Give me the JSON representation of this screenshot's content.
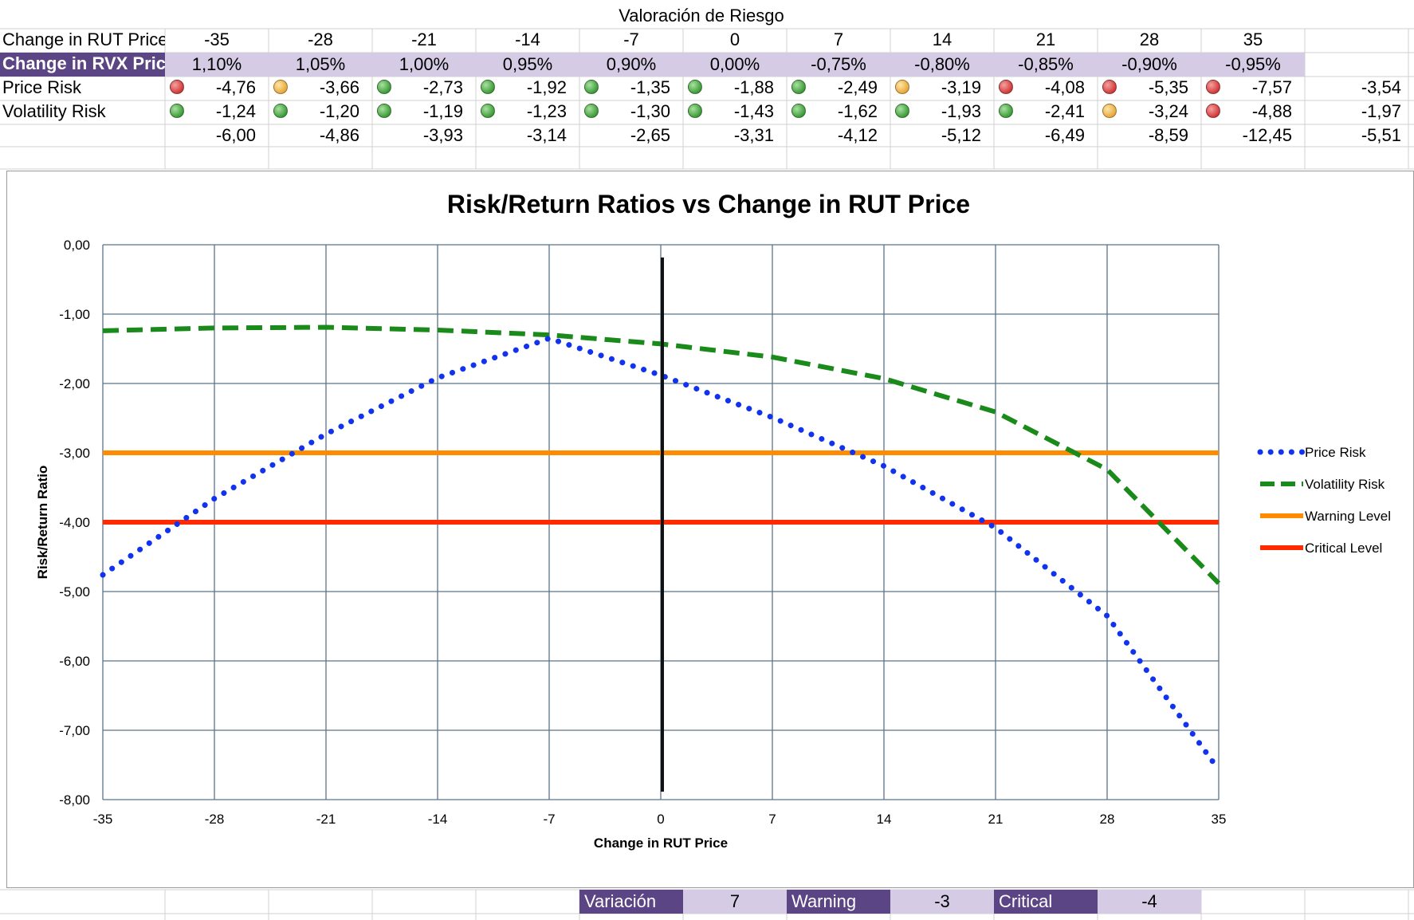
{
  "sheet": {
    "title": "Valoración de Riesgo",
    "rows": {
      "rut_label": "Change in RUT Price",
      "rvx_label": "Change in RVX Price",
      "price_label": "Price Risk",
      "vol_label": "Volatility Risk"
    },
    "rut_changes": [
      "-35",
      "-28",
      "-21",
      "-14",
      "-7",
      "0",
      "7",
      "14",
      "21",
      "28",
      "35"
    ],
    "rvx_changes": [
      "1,10%",
      "1,05%",
      "1,00%",
      "0,95%",
      "0,90%",
      "0,00%",
      "-0,75%",
      "-0,80%",
      "-0,85%",
      "-0,90%",
      "-0,95%"
    ],
    "price_risk": [
      "-4,76",
      "-3,66",
      "-2,73",
      "-1,92",
      "-1,35",
      "-1,88",
      "-2,49",
      "-3,19",
      "-4,08",
      "-5,35",
      "-7,57"
    ],
    "price_risk_status": [
      "red",
      "yellow",
      "green",
      "green",
      "green",
      "green",
      "green",
      "yellow",
      "red",
      "red",
      "red"
    ],
    "price_risk_extra": "-3,54",
    "volatility_risk": [
      "-1,24",
      "-1,20",
      "-1,19",
      "-1,23",
      "-1,30",
      "-1,43",
      "-1,62",
      "-1,93",
      "-2,41",
      "-3,24",
      "-4,88"
    ],
    "volatility_risk_status": [
      "green",
      "green",
      "green",
      "green",
      "green",
      "green",
      "green",
      "green",
      "green",
      "yellow",
      "red"
    ],
    "volatility_risk_extra": "-1,97",
    "totals": [
      "-6,00",
      "-4,86",
      "-3,93",
      "-3,14",
      "-2,65",
      "-3,31",
      "-4,12",
      "-5,12",
      "-6,49",
      "-8,59",
      "-12,45"
    ],
    "totals_extra": "-5,51"
  },
  "controls": {
    "variacion_label": "Variación",
    "variacion_value": "7",
    "warning_label": "Warning",
    "warning_value": "-3",
    "critical_label": "Critical",
    "critical_value": "-4"
  },
  "colors": {
    "purple": "#5b4585",
    "lavender": "#d5cbe4",
    "price": "#1133ee",
    "volatility": "#1a8a1a",
    "warning": "#ff8c00",
    "critical": "#ff2a00"
  },
  "chart_data": {
    "type": "line",
    "title": "Risk/Return Ratios vs Change in RUT Price",
    "xlabel": "Change in RUT Price",
    "ylabel": "Risk/Return Ratio",
    "x": [
      -35,
      -28,
      -21,
      -14,
      -7,
      0,
      7,
      14,
      21,
      28,
      35
    ],
    "xlim": [
      -35,
      35
    ],
    "ylim": [
      -8,
      0
    ],
    "xticks": [
      "-35",
      "-28",
      "-21",
      "-14",
      "-7",
      "0",
      "7",
      "14",
      "21",
      "28",
      "35"
    ],
    "yticks": [
      "0,00",
      "-1,00",
      "-2,00",
      "-3,00",
      "-4,00",
      "-5,00",
      "-6,00",
      "-7,00",
      "-8,00"
    ],
    "grid": true,
    "legend_position": "right",
    "marker_x": 0,
    "series": [
      {
        "name": "Price Risk",
        "style": "dotted",
        "values": [
          -4.76,
          -3.66,
          -2.73,
          -1.92,
          -1.35,
          -1.88,
          -2.49,
          -3.19,
          -4.08,
          -5.35,
          -7.57
        ]
      },
      {
        "name": "Volatility Risk",
        "style": "dashed",
        "values": [
          -1.24,
          -1.2,
          -1.19,
          -1.23,
          -1.3,
          -1.43,
          -1.62,
          -1.93,
          -2.41,
          -3.24,
          -4.88
        ]
      },
      {
        "name": "Warning Level",
        "style": "solid",
        "values": [
          -3,
          -3,
          -3,
          -3,
          -3,
          -3,
          -3,
          -3,
          -3,
          -3,
          -3
        ]
      },
      {
        "name": "Critical Level",
        "style": "solid",
        "values": [
          -4,
          -4,
          -4,
          -4,
          -4,
          -4,
          -4,
          -4,
          -4,
          -4,
          -4
        ]
      }
    ]
  }
}
